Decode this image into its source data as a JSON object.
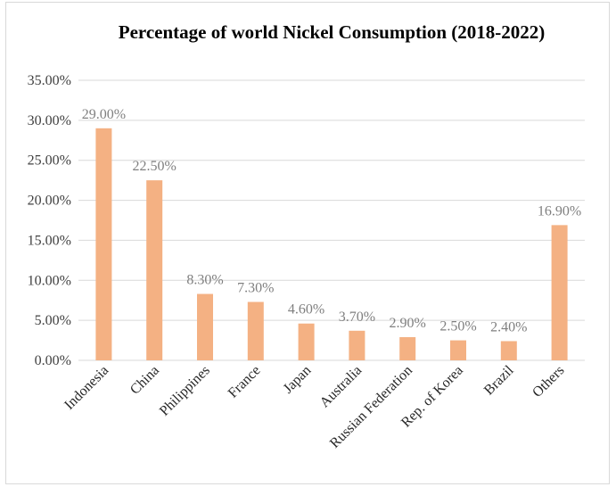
{
  "chart_data": {
    "type": "bar",
    "title": "Percentage of world Nickel Consumption (2018-2022)",
    "xlabel": "",
    "ylabel": "",
    "categories": [
      "Indonesia",
      "China",
      "Philippines",
      "France",
      "Japan",
      "Australia",
      "Russian Federation",
      "Rep. of Korea",
      "Brazil",
      "Others"
    ],
    "values": [
      29.0,
      22.5,
      8.3,
      7.3,
      4.6,
      3.7,
      2.9,
      2.5,
      2.4,
      16.9
    ],
    "data_labels": [
      "29.00%",
      "22.50%",
      "8.30%",
      "7.30%",
      "4.60%",
      "3.70%",
      "2.90%",
      "2.50%",
      "2.40%",
      "16.90%"
    ],
    "ylim": [
      0,
      35
    ],
    "yticks": [
      0,
      5,
      10,
      15,
      20,
      25,
      30,
      35
    ],
    "ytick_labels": [
      "0.00%",
      "5.00%",
      "10.00%",
      "15.00%",
      "20.00%",
      "25.00%",
      "30.00%",
      "35.00%"
    ],
    "grid": true,
    "bar_color": "#f4b183",
    "gridline_color": "#d9d9d9"
  }
}
